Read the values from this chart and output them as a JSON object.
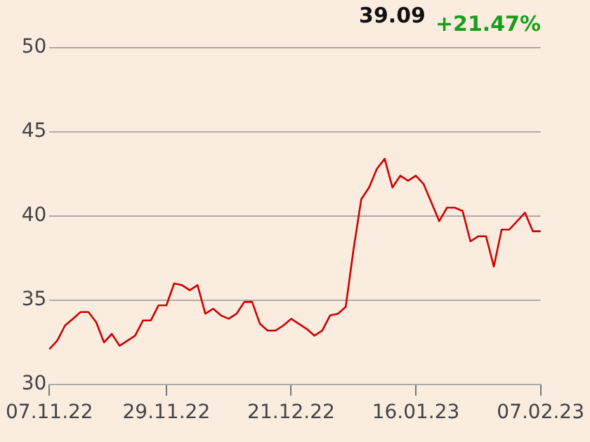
{
  "chart_data": {
    "type": "line",
    "annotations": [
      "39.09",
      "+21.47%"
    ],
    "categories": [
      "07.11.22",
      null,
      null,
      null,
      null,
      null,
      null,
      null,
      null,
      null,
      null,
      null,
      null,
      null,
      null,
      "29.11.22",
      null,
      null,
      null,
      null,
      null,
      null,
      null,
      null,
      null,
      null,
      null,
      null,
      null,
      null,
      null,
      "21.12.22",
      null,
      null,
      null,
      null,
      null,
      null,
      null,
      null,
      null,
      null,
      null,
      null,
      null,
      null,
      null,
      "16.01.23",
      null,
      null,
      null,
      null,
      null,
      null,
      null,
      null,
      null,
      null,
      null,
      null,
      null,
      null,
      null,
      "07.02.23"
    ],
    "series": [
      {
        "color": "#cc0000",
        "values": [
          32.1,
          32.6,
          33.5,
          33.9,
          34.3,
          34.3,
          33.7,
          32.5,
          33.0,
          32.3,
          32.6,
          32.9,
          33.8,
          33.8,
          34.7,
          34.7,
          36.0,
          35.9,
          35.6,
          35.9,
          34.2,
          34.5,
          34.1,
          33.9,
          34.2,
          34.9,
          34.9,
          33.6,
          33.2,
          33.2,
          33.5,
          33.9,
          33.6,
          33.3,
          32.9,
          33.2,
          34.1,
          34.2,
          34.6,
          38.0,
          41.0,
          41.7,
          42.8,
          43.4,
          41.7,
          42.4,
          42.1,
          42.4,
          41.9,
          40.8,
          39.7,
          40.5,
          40.5,
          40.3,
          38.5,
          38.8,
          38.8,
          37.0,
          39.2,
          39.2,
          39.7,
          40.2,
          39.1,
          39.1
        ]
      }
    ],
    "ylim": [
      30,
      50
    ],
    "yticks": [
      30,
      35,
      40,
      45,
      50
    ],
    "grid": "y",
    "legend": false,
    "marker": "none",
    "line_style": "solid"
  }
}
